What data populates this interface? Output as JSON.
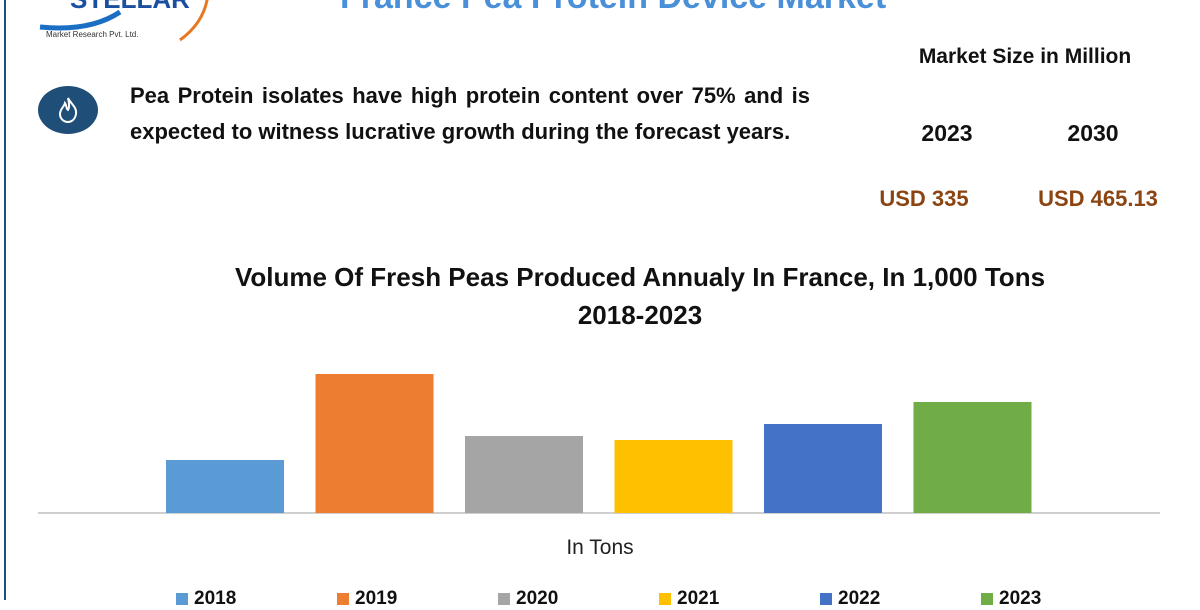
{
  "header": {
    "logo_text": "STELLAR",
    "logo_sub": "Market Research Pvt. Ltd.",
    "title": "France Pea Protein Device Market"
  },
  "info": {
    "icon": "flame-icon",
    "text": "Pea Protein isolates have high protein content over 75% and is expected to witness lucrative growth during the forecast years."
  },
  "market": {
    "title": "Market Size in Million",
    "year1": "2023",
    "year2": "2030",
    "value1": "USD 335",
    "value2": "USD 465.13"
  },
  "chart_data": {
    "type": "bar",
    "title": "Volume Of Fresh Peas Produced Annualy In France, In 1,000 Tons",
    "subtitle": "2018-2023",
    "xlabel": "In Tons",
    "categories": [
      "2018",
      "2019",
      "2020",
      "2021",
      "2022",
      "2023"
    ],
    "values": [
      53,
      139,
      77,
      73,
      89,
      111
    ],
    "colors": [
      "#5b9bd5",
      "#ed7d31",
      "#a5a5a5",
      "#ffc000",
      "#4472c4",
      "#70ad47"
    ],
    "legend": "bottom",
    "grid": false
  }
}
